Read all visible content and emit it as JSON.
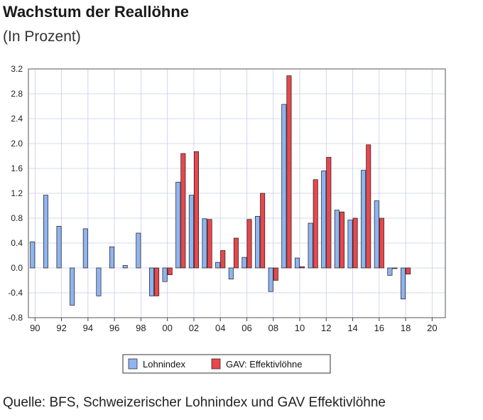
{
  "title": "Wachstum der Reallöhne",
  "subtitle": "(In Prozent)",
  "source": "Quelle: BFS, Schweizerischer Lohnindex und GAV Effektivlöhne",
  "chart_data": {
    "type": "bar",
    "title": "Wachstum der Reallöhne",
    "subtitle": "(In Prozent)",
    "xlabel": "",
    "ylabel": "",
    "ylim": [
      -0.8,
      3.2
    ],
    "yticks": [
      "3.2",
      "2.8",
      "2.4",
      "2.0",
      "1.6",
      "1.2",
      "0.8",
      "0.4",
      "0.0",
      "-0.4",
      "-0.8"
    ],
    "xtick_labels": [
      "90",
      "92",
      "94",
      "96",
      "98",
      "00",
      "02",
      "04",
      "06",
      "08",
      "10",
      "12",
      "14",
      "16",
      "18",
      "20"
    ],
    "categories": [
      "1990",
      "1991",
      "1992",
      "1993",
      "1994",
      "1995",
      "1996",
      "1997",
      "1998",
      "1999",
      "2000",
      "2001",
      "2002",
      "2003",
      "2004",
      "2005",
      "2006",
      "2007",
      "2008",
      "2009",
      "2010",
      "2011",
      "2012",
      "2013",
      "2014",
      "2015",
      "2016",
      "2017",
      "2018",
      "2019",
      "2020"
    ],
    "grid": true,
    "legend_position": "bottom",
    "series": [
      {
        "name": "Lohnindex",
        "color": "#8fb4f0",
        "values": [
          0.42,
          1.17,
          0.67,
          -0.6,
          0.63,
          -0.45,
          0.34,
          0.04,
          0.56,
          -0.45,
          -0.22,
          1.38,
          1.17,
          0.79,
          0.09,
          -0.18,
          0.17,
          0.83,
          -0.38,
          2.63,
          0.16,
          0.72,
          1.56,
          0.93,
          0.77,
          1.57,
          1.08,
          -0.12,
          -0.5,
          null,
          null
        ]
      },
      {
        "name": "GAV: Effektivlöhne",
        "color": "#e8474c",
        "values": [
          null,
          null,
          null,
          null,
          null,
          null,
          null,
          null,
          null,
          -0.45,
          -0.11,
          1.84,
          1.87,
          0.78,
          0.28,
          0.48,
          0.78,
          1.2,
          -0.2,
          3.09,
          0.02,
          1.42,
          1.78,
          0.9,
          0.8,
          1.98,
          0.8,
          0.0,
          -0.1,
          null,
          null
        ]
      }
    ]
  }
}
